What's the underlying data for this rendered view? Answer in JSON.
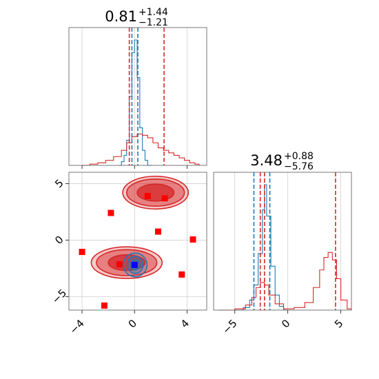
{
  "colors": {
    "red": "#d62728",
    "blue": "#1f77b4",
    "grid": "#c8c8c8",
    "frame": "#555555"
  },
  "titles": [
    {
      "value": "0.81",
      "plus": "+1.44",
      "minus": "−1.21"
    },
    {
      "value": "3.48",
      "plus": "+0.88",
      "minus": "−5.76"
    }
  ],
  "chart_data": [
    {
      "type": "line",
      "panel": "marginal-parameter-1",
      "xlim": [
        -5,
        5.5
      ],
      "xticks": [
        -4,
        0,
        4
      ],
      "grid": true,
      "series": [
        {
          "color": "#1f77b4",
          "style": "step-histogram",
          "x": [
            -1.2,
            -1.0,
            -0.8,
            -0.6,
            -0.4,
            -0.2,
            0.0,
            0.2,
            0.4,
            0.6,
            0.8,
            1.0
          ],
          "y": [
            0.0,
            0.03,
            0.08,
            0.2,
            0.55,
            0.9,
            1.0,
            0.7,
            0.3,
            0.12,
            0.04,
            0.0
          ]
        },
        {
          "color": "#d62728",
          "style": "step-histogram",
          "x": [
            -4.0,
            -3.4,
            -2.8,
            -2.2,
            -1.6,
            -1.0,
            -0.6,
            -0.2,
            0.2,
            0.6,
            1.0,
            1.4,
            1.8,
            2.2,
            2.6,
            3.0,
            3.4,
            3.8,
            4.2,
            4.6
          ],
          "y": [
            0.0,
            0.01,
            0.02,
            0.04,
            0.07,
            0.12,
            0.18,
            0.23,
            0.25,
            0.24,
            0.22,
            0.18,
            0.14,
            0.12,
            0.1,
            0.08,
            0.06,
            0.04,
            0.02,
            0.01
          ]
        }
      ],
      "vlines": [
        {
          "x": -0.4,
          "color": "#d62728"
        },
        {
          "x": 2.25,
          "color": "#d62728"
        },
        {
          "x": -0.2,
          "color": "#1f77b4"
        },
        {
          "x": 0.25,
          "color": "#1f77b4"
        }
      ]
    },
    {
      "type": "scatter",
      "panel": "joint-parameter-1-vs-2",
      "xlim": [
        -5,
        5.5
      ],
      "ylim": [
        -6.2,
        6
      ],
      "xticks": [
        -4,
        0,
        4
      ],
      "yticks": [
        5,
        0,
        -5
      ],
      "grid": true,
      "contours": [
        {
          "color": "#d62728",
          "center": [
            1.6,
            4.2
          ],
          "radii": [
            [
              2.5,
              1.45
            ],
            [
              2.2,
              1.2
            ],
            [
              1.4,
              0.75
            ]
          ]
        },
        {
          "color": "#d62728",
          "center": [
            -0.6,
            -2.0
          ],
          "radii": [
            [
              2.7,
              1.4
            ],
            [
              2.3,
              1.15
            ],
            [
              1.4,
              0.7
            ]
          ]
        },
        {
          "color": "#1f77b4",
          "center": [
            0.05,
            -2.2
          ],
          "radii": [
            [
              0.9,
              1.05
            ],
            [
              0.6,
              0.75
            ],
            [
              0.35,
              0.45
            ]
          ]
        }
      ],
      "points": [
        {
          "x": 1.0,
          "y": 3.9,
          "color": "#ff0000"
        },
        {
          "x": 2.3,
          "y": 3.7,
          "color": "#ff0000"
        },
        {
          "x": -1.8,
          "y": 2.4,
          "color": "#ff0000"
        },
        {
          "x": 1.8,
          "y": 0.75,
          "color": "#ff0000"
        },
        {
          "x": 4.45,
          "y": 0.05,
          "color": "#ff0000"
        },
        {
          "x": -4.0,
          "y": -1.05,
          "color": "#ff0000"
        },
        {
          "x": -1.15,
          "y": -2.15,
          "color": "#ff0000"
        },
        {
          "x": 3.6,
          "y": -3.05,
          "color": "#ff0000"
        },
        {
          "x": -2.3,
          "y": -5.8,
          "color": "#ff0000"
        },
        {
          "x": 0.0,
          "y": -2.2,
          "color": "#0000ff"
        }
      ]
    },
    {
      "type": "line",
      "panel": "marginal-parameter-2",
      "xlim": [
        -7,
        6
      ],
      "xticks": [
        -5,
        0,
        5
      ],
      "grid": true,
      "series": [
        {
          "color": "#1f77b4",
          "style": "step-histogram",
          "x": [
            -5.0,
            -4.2,
            -3.6,
            -3.2,
            -2.8,
            -2.4,
            -2.2,
            -2.0,
            -1.6,
            -1.2,
            -0.8,
            -0.4
          ],
          "y": [
            0.0,
            0.02,
            0.08,
            0.2,
            0.45,
            0.8,
            1.0,
            0.75,
            0.35,
            0.12,
            0.03,
            0.0
          ]
        },
        {
          "color": "#d62728",
          "style": "step-histogram",
          "x": [
            -6.5,
            -5.0,
            -4.0,
            -3.4,
            -3.0,
            -2.6,
            -2.2,
            -1.8,
            -1.2,
            -0.4,
            0.6,
            1.6,
            2.4,
            3.0,
            3.4,
            3.8,
            4.2,
            4.6,
            5.0,
            5.6
          ],
          "y": [
            0.0,
            0.01,
            0.04,
            0.1,
            0.18,
            0.22,
            0.2,
            0.12,
            0.05,
            0.01,
            0.02,
            0.06,
            0.18,
            0.32,
            0.42,
            0.46,
            0.4,
            0.25,
            0.08,
            0.01
          ]
        }
      ],
      "vlines": [
        {
          "x": -3.2,
          "color": "#1f77b4"
        },
        {
          "x": -1.7,
          "color": "#1f77b4"
        },
        {
          "x": -2.6,
          "color": "#d62728"
        },
        {
          "x": -2.2,
          "color": "#d62728"
        },
        {
          "x": 4.5,
          "color": "#d62728"
        }
      ]
    }
  ]
}
